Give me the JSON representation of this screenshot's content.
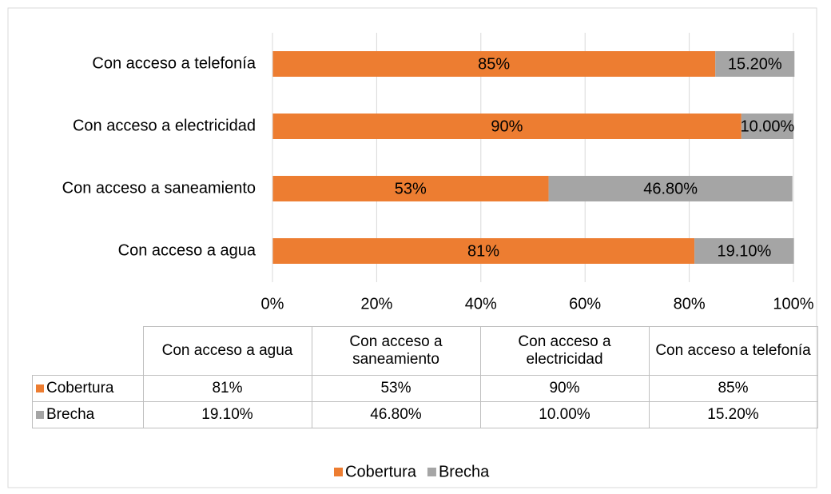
{
  "chart_data": {
    "type": "stacked_barh",
    "categories": [
      "Con acceso a agua",
      "Con acceso a saneamiento",
      "Con acceso a electricidad",
      "Con acceso a telefonía"
    ],
    "series": [
      {
        "name": "Cobertura",
        "color": "#ed7d31",
        "values": [
          81,
          53,
          90,
          85
        ],
        "value_labels": [
          "81%",
          "53%",
          "90%",
          "85%"
        ]
      },
      {
        "name": "Brecha",
        "color": "#a5a5a5",
        "values": [
          19.1,
          46.8,
          10,
          15.2
        ],
        "value_labels": [
          "19.10%",
          "46.80%",
          "10.00%",
          "15.20%"
        ]
      }
    ],
    "xlim": [
      0,
      100
    ],
    "xticks": [
      {
        "value": 0,
        "label": "0%"
      },
      {
        "value": 20,
        "label": "20%"
      },
      {
        "value": 40,
        "label": "40%"
      },
      {
        "value": 60,
        "label": "60%"
      },
      {
        "value": 80,
        "label": "80%"
      },
      {
        "value": 100,
        "label": "100%"
      }
    ],
    "grid": true,
    "legend": "bottom",
    "data_table": true
  }
}
